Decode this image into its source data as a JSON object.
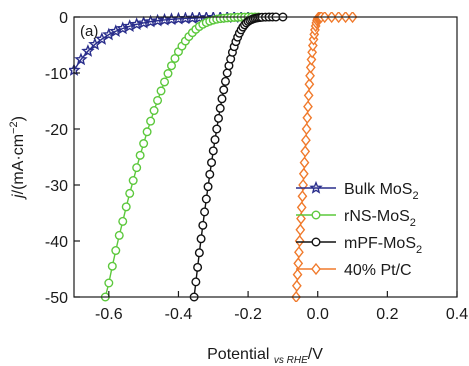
{
  "chart_data": {
    "type": "line",
    "panel_label": "(a)",
    "xlabel": {
      "main": "Potential",
      "sub": "vs RHE",
      "unit": "/V"
    },
    "ylabel": {
      "italic": "j",
      "rest": "/(mA·cm",
      "sup": "−2",
      "close": ")"
    },
    "xlim": [
      -0.7,
      0.4
    ],
    "ylim": [
      -50,
      0
    ],
    "xticks": [
      {
        "v": -0.6,
        "label": "-0.6"
      },
      {
        "v": -0.4,
        "label": "-0.4"
      },
      {
        "v": -0.2,
        "label": "-0.2"
      },
      {
        "v": 0.0,
        "label": "0.0"
      },
      {
        "v": 0.2,
        "label": "0.2"
      },
      {
        "v": 0.4,
        "label": "0.4"
      }
    ],
    "yticks": [
      {
        "v": 0,
        "label": "0"
      },
      {
        "v": -10,
        "label": "-10"
      },
      {
        "v": -20,
        "label": "-20"
      },
      {
        "v": -30,
        "label": "-30"
      },
      {
        "v": -40,
        "label": "-40"
      },
      {
        "v": -50,
        "label": "-50"
      }
    ],
    "legend": {
      "position": "bottom-right"
    },
    "series": [
      {
        "name": "Bulk MoS",
        "name_sub": "2",
        "color": "#2a2e8c",
        "marker": "star",
        "x": [
          -0.7,
          -0.68,
          -0.66,
          -0.64,
          -0.62,
          -0.6,
          -0.58,
          -0.56,
          -0.54,
          -0.52,
          -0.5,
          -0.48,
          -0.46,
          -0.44,
          -0.42,
          -0.4,
          -0.38,
          -0.36,
          -0.34,
          -0.32,
          -0.3,
          -0.28,
          -0.26,
          -0.24,
          -0.22,
          -0.2
        ],
        "y": [
          -9.5,
          -7.6,
          -6.1,
          -4.9,
          -3.95,
          -3.15,
          -2.55,
          -2.05,
          -1.65,
          -1.3,
          -1.05,
          -0.84,
          -0.67,
          -0.53,
          -0.42,
          -0.33,
          -0.26,
          -0.2,
          -0.15,
          -0.11,
          -0.08,
          -0.06,
          -0.04,
          -0.02,
          -0.01,
          0
        ]
      },
      {
        "name": "rNS-MoS",
        "name_sub": "2",
        "color": "#5cc83c",
        "marker": "circle",
        "x": [
          -0.61,
          -0.6,
          -0.59,
          -0.58,
          -0.57,
          -0.56,
          -0.55,
          -0.54,
          -0.53,
          -0.52,
          -0.51,
          -0.5,
          -0.49,
          -0.48,
          -0.47,
          -0.46,
          -0.45,
          -0.44,
          -0.43,
          -0.42,
          -0.41,
          -0.4,
          -0.39,
          -0.38,
          -0.37,
          -0.36,
          -0.35,
          -0.34,
          -0.33,
          -0.32,
          -0.31,
          -0.3,
          -0.29,
          -0.28,
          -0.27,
          -0.26,
          -0.25,
          -0.24,
          -0.23,
          -0.22,
          -0.21,
          -0.2,
          -0.19,
          -0.18,
          -0.17
        ],
        "y": [
          -50,
          -47.5,
          -44.5,
          -41.7,
          -39,
          -36.5,
          -33.9,
          -31.5,
          -29.2,
          -26.9,
          -24.7,
          -22.6,
          -20.5,
          -18.6,
          -16.7,
          -14.9,
          -13.2,
          -11.6,
          -10.1,
          -8.7,
          -7.4,
          -6.2,
          -5.2,
          -4.3,
          -3.5,
          -2.8,
          -2.2,
          -1.7,
          -1.3,
          -1,
          -0.75,
          -0.55,
          -0.4,
          -0.3,
          -0.22,
          -0.16,
          -0.11,
          -0.08,
          -0.05,
          -0.03,
          -0.02,
          -0.01,
          0,
          0,
          0
        ]
      },
      {
        "name": "mPF-MoS",
        "name_sub": "2",
        "color": "#111111",
        "marker": "circle",
        "x": [
          -0.355,
          -0.35,
          -0.345,
          -0.34,
          -0.335,
          -0.33,
          -0.325,
          -0.32,
          -0.315,
          -0.31,
          -0.305,
          -0.3,
          -0.295,
          -0.29,
          -0.285,
          -0.28,
          -0.275,
          -0.27,
          -0.265,
          -0.26,
          -0.255,
          -0.25,
          -0.245,
          -0.24,
          -0.235,
          -0.23,
          -0.225,
          -0.22,
          -0.215,
          -0.21,
          -0.205,
          -0.2,
          -0.195,
          -0.19,
          -0.185,
          -0.18,
          -0.175,
          -0.17,
          -0.165,
          -0.16,
          -0.15,
          -0.14,
          -0.13,
          -0.12,
          -0.1
        ],
        "y": [
          -50,
          -47.3,
          -44.7,
          -42.1,
          -39.6,
          -37.2,
          -34.8,
          -32.5,
          -30.3,
          -28.1,
          -26,
          -23.9,
          -21.9,
          -20,
          -18.1,
          -16.3,
          -14.6,
          -13,
          -11.5,
          -10,
          -8.7,
          -7.5,
          -6.3,
          -5.3,
          -4.4,
          -3.6,
          -2.9,
          -2.3,
          -1.8,
          -1.4,
          -1.05,
          -0.8,
          -0.6,
          -0.45,
          -0.33,
          -0.24,
          -0.17,
          -0.12,
          -0.08,
          -0.05,
          -0.02,
          -0.01,
          0,
          0,
          0
        ]
      },
      {
        "name": "40% Pt/C",
        "name_sub": "",
        "color": "#f07a2c",
        "marker": "diamond",
        "x": [
          -0.062,
          -0.06,
          -0.058,
          -0.056,
          -0.054,
          -0.052,
          -0.05,
          -0.048,
          -0.046,
          -0.044,
          -0.042,
          -0.04,
          -0.038,
          -0.036,
          -0.034,
          -0.032,
          -0.03,
          -0.028,
          -0.026,
          -0.024,
          -0.022,
          -0.02,
          -0.018,
          -0.016,
          -0.014,
          -0.012,
          -0.01,
          -0.008,
          -0.006,
          -0.004,
          -0.002,
          0.0,
          0.002,
          0.004,
          0.006,
          0.01,
          0.02,
          0.04,
          0.06,
          0.08,
          0.1
        ],
        "y": [
          -50,
          -48,
          -46,
          -44,
          -42,
          -40,
          -38,
          -36,
          -34,
          -32,
          -30,
          -28,
          -26,
          -24,
          -22,
          -20,
          -18,
          -16,
          -14,
          -12,
          -10.5,
          -9,
          -7.6,
          -6.3,
          -5.1,
          -4,
          -3.1,
          -2.3,
          -1.6,
          -1.05,
          -0.6,
          -0.3,
          -0.12,
          -0.04,
          0,
          0,
          0,
          0,
          0,
          0,
          0
        ]
      }
    ]
  }
}
